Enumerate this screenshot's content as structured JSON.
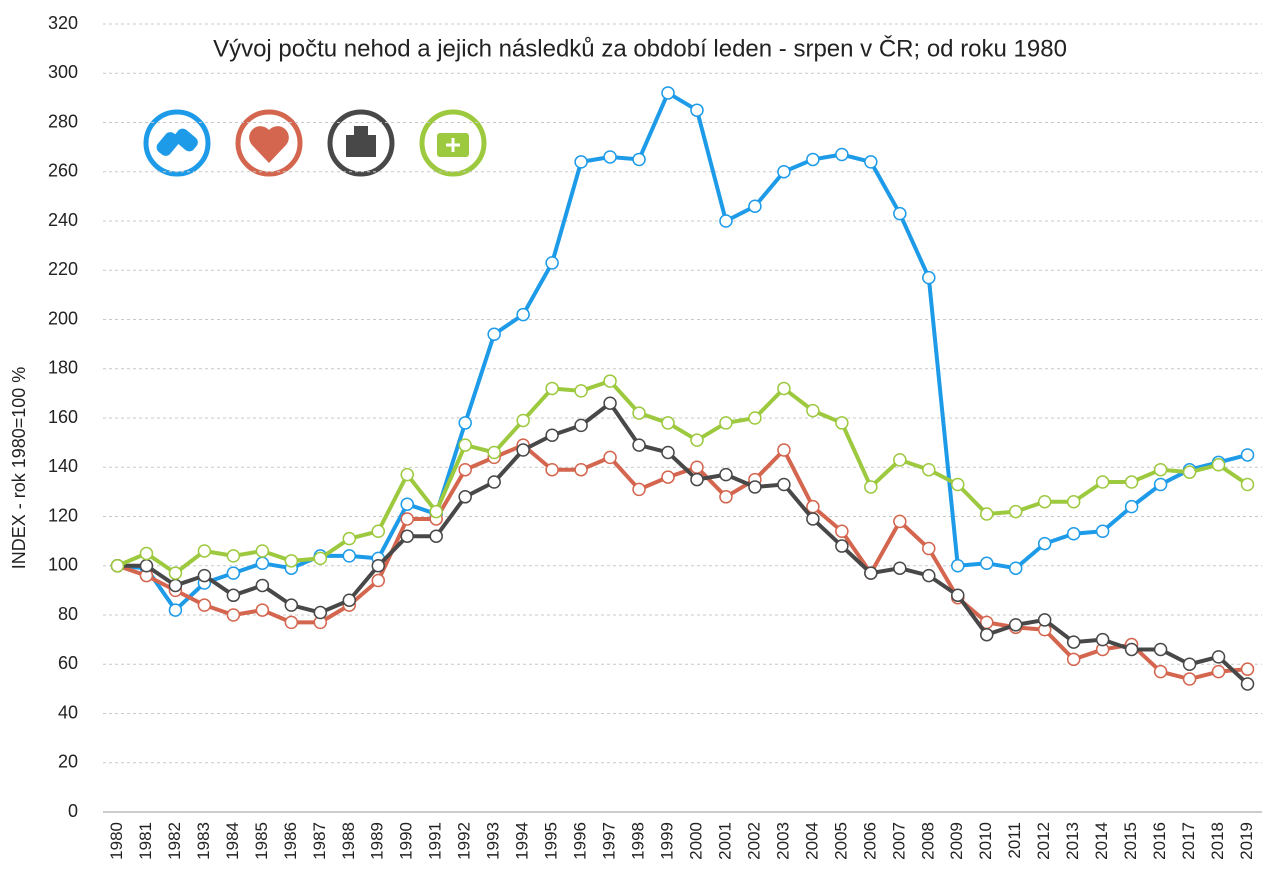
{
  "chart_data": {
    "type": "line",
    "title": "Vývoj počtu nehod a jejich následků za období leden - srpen v ČR; od roku 1980",
    "ylabel": "INDEX - rok 1980=100 %",
    "categories": [
      "1980",
      "1981",
      "1982",
      "1983",
      "1984",
      "1985",
      "1986",
      "1987",
      "1988",
      "1989",
      "1990",
      "1991",
      "1992",
      "1993",
      "1994",
      "1995",
      "1996",
      "1997",
      "1998",
      "1999",
      "2000",
      "2001",
      "2002",
      "2003",
      "2004",
      "2005",
      "2006",
      "2007",
      "2008",
      "2009",
      "2010",
      "2011",
      "2012",
      "2013",
      "2014",
      "2015",
      "2016",
      "2017",
      "2018",
      "2019"
    ],
    "series": [
      {
        "color": "#1e9be8",
        "values": [
          100,
          99,
          82,
          93,
          97,
          101,
          99,
          104,
          104,
          103,
          125,
          121,
          158,
          194,
          202,
          223,
          264,
          266,
          265,
          292,
          285,
          240,
          246,
          260,
          265,
          267,
          264,
          243,
          217,
          100,
          101,
          99,
          109,
          113,
          114,
          124,
          133,
          139,
          142,
          145
        ]
      },
      {
        "color": "#d4654e",
        "values": [
          100,
          96,
          90,
          84,
          80,
          82,
          77,
          77,
          84,
          94,
          119,
          119,
          139,
          144,
          149,
          139,
          139,
          144,
          131,
          136,
          140,
          128,
          135,
          147,
          124,
          114,
          97,
          118,
          107,
          87,
          77,
          75,
          74,
          62,
          66,
          68,
          57,
          54,
          57,
          58
        ]
      },
      {
        "color": "#484848",
        "values": [
          100,
          100,
          92,
          96,
          88,
          92,
          84,
          81,
          86,
          100,
          112,
          112,
          128,
          134,
          147,
          153,
          157,
          166,
          149,
          146,
          135,
          137,
          132,
          133,
          119,
          108,
          97,
          99,
          96,
          88,
          72,
          76,
          78,
          69,
          70,
          66,
          66,
          60,
          63,
          52
        ]
      },
      {
        "color": "#9dc93f",
        "values": [
          100,
          105,
          97,
          106,
          104,
          106,
          102,
          103,
          111,
          114,
          137,
          122,
          149,
          146,
          159,
          172,
          171,
          175,
          162,
          158,
          151,
          158,
          160,
          172,
          163,
          158,
          132,
          143,
          139,
          133,
          121,
          122,
          126,
          126,
          134,
          134,
          139,
          138,
          141,
          133
        ]
      }
    ],
    "ylim": [
      0,
      320
    ],
    "yticks": [
      0,
      20,
      40,
      60,
      80,
      100,
      120,
      140,
      160,
      180,
      200,
      220,
      240,
      260,
      280,
      300,
      320
    ],
    "grid": true
  }
}
